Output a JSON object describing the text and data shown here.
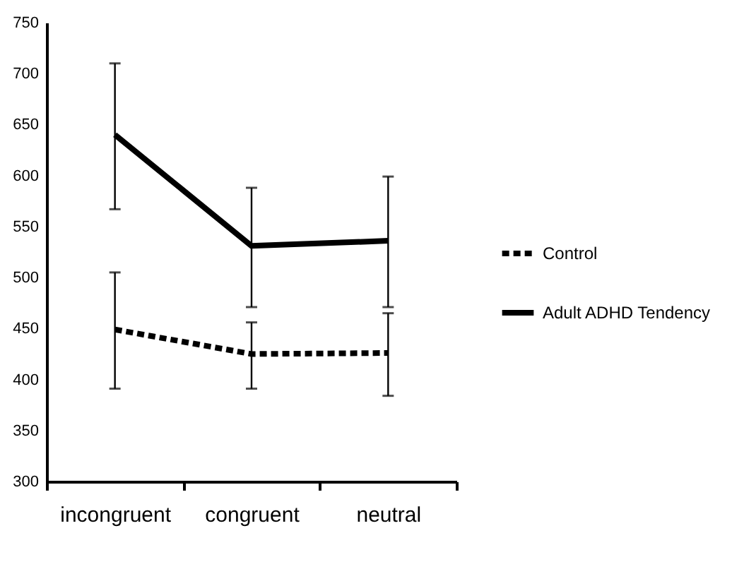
{
  "chart_data": {
    "type": "line",
    "categories": [
      "incongruent",
      "congruent",
      "neutral"
    ],
    "series": [
      {
        "name": "Control",
        "color": "#000000",
        "line_style": "dashed",
        "values": [
          449,
          425,
          426
        ],
        "errors": [
          [
            391,
            505
          ],
          [
            391,
            456
          ],
          [
            384,
            465
          ]
        ]
      },
      {
        "name": "Adult ADHD Tendency",
        "color": "#000000",
        "line_style": "solid",
        "values": [
          640,
          531,
          536
        ],
        "errors": [
          [
            567,
            710
          ],
          [
            471,
            588
          ],
          [
            471,
            599
          ]
        ]
      }
    ],
    "ylim": [
      300,
      750
    ],
    "yticks": [
      300,
      350,
      400,
      450,
      500,
      550,
      600,
      650,
      700,
      750
    ],
    "grid": false,
    "legend": "right",
    "marker": "none"
  }
}
